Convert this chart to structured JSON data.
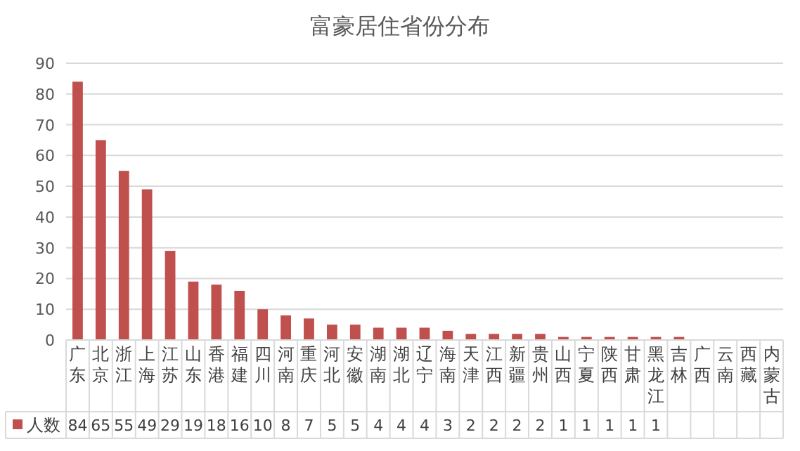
{
  "chart_data": {
    "type": "bar",
    "title": "富豪居住省份分布",
    "categories": [
      "广东",
      "北京",
      "浙江",
      "上海",
      "江苏",
      "山东",
      "香港",
      "福建",
      "四川",
      "河南",
      "重庆",
      "河北",
      "安徽",
      "湖南",
      "湖北",
      "辽宁",
      "海南",
      "天津",
      "江西",
      "新疆",
      "贵州",
      "山西",
      "宁夏",
      "陕西",
      "甘肃",
      "黑龙江",
      "吉林",
      "广西",
      "云南",
      "西藏",
      "内蒙古"
    ],
    "series": [
      {
        "name": "人数",
        "color": "#c0504d",
        "values": [
          84,
          65,
          55,
          49,
          29,
          19,
          18,
          16,
          10,
          8,
          7,
          5,
          5,
          4,
          4,
          4,
          3,
          2,
          2,
          2,
          2,
          1,
          1,
          1,
          1,
          1,
          1,
          0,
          0,
          0,
          0
        ],
        "value_labels": [
          "84",
          "65",
          "55",
          "49",
          "29",
          "19",
          "18",
          "16",
          "10",
          "8",
          "7",
          "5",
          "5",
          "4",
          "4",
          "4",
          "3",
          "2",
          "2",
          "2",
          "2",
          "1",
          "1",
          "1",
          "1",
          "1",
          null,
          null,
          null,
          null,
          null
        ]
      }
    ],
    "ylim": [
      0,
      90
    ],
    "yticks": [
      0,
      10,
      20,
      30,
      40,
      50,
      60,
      70,
      80,
      90
    ],
    "grid": "y",
    "legend": "bottom"
  }
}
